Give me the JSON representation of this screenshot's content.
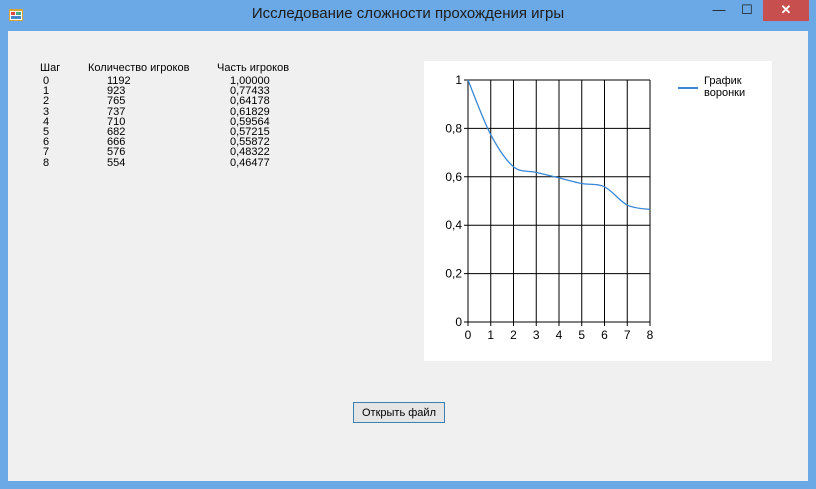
{
  "window": {
    "title": "Исследование сложности прохождения игры",
    "controls": {
      "minimize": "—",
      "maximize": "☐",
      "close": "✕"
    }
  },
  "table": {
    "headers": [
      "Шаг",
      "Количество игроков",
      "Часть игроков"
    ],
    "rows": [
      [
        "0",
        "1192",
        "1,00000"
      ],
      [
        "1",
        "923",
        "0,77433"
      ],
      [
        "2",
        "765",
        "0,64178"
      ],
      [
        "3",
        "737",
        "0,61829"
      ],
      [
        "4",
        "710",
        "0,59564"
      ],
      [
        "5",
        "682",
        "0,57215"
      ],
      [
        "6",
        "666",
        "0,55872"
      ],
      [
        "7",
        "576",
        "0,48322"
      ],
      [
        "8",
        "554",
        "0,46477"
      ]
    ]
  },
  "chart_data": {
    "type": "line",
    "x": [
      0,
      1,
      2,
      3,
      4,
      5,
      6,
      7,
      8
    ],
    "series": [
      {
        "name": "График воронки",
        "values": [
          1.0,
          0.77433,
          0.64178,
          0.61829,
          0.59564,
          0.57215,
          0.55872,
          0.48322,
          0.46477
        ],
        "color": "#3a88d4"
      }
    ],
    "xticks": [
      "0",
      "1",
      "2",
      "3",
      "4",
      "5",
      "6",
      "7",
      "8"
    ],
    "yticks": [
      "0",
      "0,2",
      "0,4",
      "0,6",
      "0,8",
      "1"
    ],
    "xlim": [
      0,
      8
    ],
    "ylim": [
      0,
      1
    ],
    "grid": true,
    "legend": "top-right",
    "legend_label_lines": [
      "График",
      "воронки"
    ]
  },
  "buttons": {
    "open_file": "Открыть файл"
  }
}
